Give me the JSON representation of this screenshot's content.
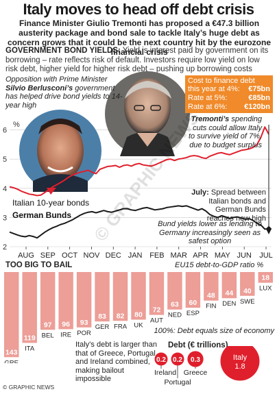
{
  "title": "Italy moves to head off debt crisis",
  "subtitle": "Finance Minister Giulio Tremonti has proposed a €47.3 billion austerity package and bond sale to tackle Italy’s huge debt as concern grows that it could be the next country hit by the eurozone financial crisis",
  "bond_section": {
    "heading": "GOVERNMENT BOND YIELDS:",
    "text": "Yield is interest paid by government on its borrowing – rate reflects risk of default. Investors require low yield on low risk debt, higher yield for higher risk debt – pushing up borrowing costs"
  },
  "annotations": {
    "berlusconi_prefix": "Opposition with Prime Minister",
    "berlusconi_name": "Silvio Berlusconi’s",
    "berlusconi_suffix": "government has helped drive bond yields to 14-year high",
    "tremonti_name": "Tremonti’s",
    "tremonti_text": "spending cuts could allow Italy to survive yield of 7%, due to budget surplus",
    "july_label": "July:",
    "july_text": "Spread between Italian bonds and German Bunds reaches new high",
    "bund_text": "Bund yields lower as lending to Germany increasingly seen as safest option"
  },
  "cost_box": {
    "heading": "Cost to finance debt",
    "rows": [
      {
        "label": "this year at 4%:",
        "value": "€75bn"
      },
      {
        "label": "Rate at 5%:",
        "value": "€85bn"
      },
      {
        "label": "Rate at 6%:",
        "value": "€120bn"
      }
    ]
  },
  "colors": {
    "italy_line": "#e01f2c",
    "bund_line": "#1a1a1a",
    "bars": "#ec9e97",
    "bar_labels": "#ffffff",
    "orange_box": "#f08a2a",
    "italy_circle": "#e01f2c"
  },
  "chart_data": [
    {
      "type": "line",
      "y_unit_label": "%",
      "ylim": [
        2,
        6.6
      ],
      "yticks": [
        2,
        3,
        4,
        5,
        6
      ],
      "x_tick_labels": [
        "AUG",
        "SEP",
        "OCT",
        "NOV",
        "DEC",
        "JAN",
        "FEB",
        "MAR",
        "APR",
        "MAY",
        "JUN",
        "JUL"
      ],
      "series": [
        {
          "name": "Italian 10-year bonds",
          "values": [
            4.05,
            4.02,
            3.97,
            3.9,
            3.85,
            3.8,
            3.78,
            3.75,
            3.77,
            3.86,
            3.95,
            4.05,
            4.12,
            4.2,
            4.28,
            4.38,
            4.45,
            4.5,
            4.55,
            4.58,
            4.62,
            4.55,
            4.5,
            4.65,
            4.7,
            4.75,
            4.76,
            4.78,
            4.72,
            4.78,
            4.8,
            4.76,
            4.82,
            4.85,
            4.8,
            4.78,
            4.76,
            4.8,
            4.86,
            4.92,
            4.98,
            5.0,
            4.95,
            5.0,
            5.02,
            5.05,
            5.1,
            5.12,
            5.1,
            5.05,
            5.02,
            5.1,
            5.15,
            5.2,
            5.22,
            5.18,
            5.15,
            5.2,
            5.25,
            5.3,
            5.32,
            5.35,
            5.4,
            5.5,
            5.75,
            6.1,
            5.85
          ]
        },
        {
          "name": "German Bunds",
          "values": [
            2.5,
            2.45,
            2.4,
            2.36,
            2.34,
            2.38,
            2.35,
            2.3,
            2.4,
            2.5,
            2.58,
            2.65,
            2.7,
            2.76,
            2.8,
            2.86,
            2.92,
            3.0,
            3.08,
            3.14,
            3.18,
            3.2,
            3.16,
            3.2,
            3.24,
            3.2,
            3.18,
            3.22,
            3.26,
            3.3,
            3.3,
            3.26,
            3.24,
            3.28,
            3.32,
            3.34,
            3.3,
            3.26,
            3.28,
            3.3,
            3.34,
            3.36,
            3.38,
            3.4,
            3.38,
            3.4,
            3.35,
            3.3,
            3.25,
            3.3,
            3.22,
            3.1,
            3.04,
            3.0,
            3.06,
            3.02,
            2.96,
            3.0,
            3.02,
            2.98,
            2.94,
            2.96,
            2.9,
            2.8,
            2.74,
            2.6,
            2.62
          ]
        }
      ]
    },
    {
      "type": "bar",
      "title": "TOO BIG TO BAIL",
      "note": "EU15 debt-to-GDP ratio %",
      "categories": [
        "GRE",
        "ITA",
        "BEL",
        "IRE",
        "POR",
        "GER",
        "FRA",
        "UK",
        "AUT",
        "NED",
        "ESP",
        "FIN",
        "DEN",
        "SWE",
        "LUX"
      ],
      "values": [
        143,
        119,
        97,
        96,
        93,
        83,
        82,
        80,
        72,
        63,
        60,
        48,
        44,
        40,
        18
      ],
      "ylim": [
        0,
        145
      ]
    },
    {
      "type": "bubble",
      "title": "Debt (€ trillions)",
      "categories": [
        "Ireland",
        "Portugal",
        "Greece",
        "Italy"
      ],
      "values": [
        0.2,
        0.2,
        0.3,
        1.8
      ]
    }
  ],
  "circle_note": "100%: Debt equals size of economy",
  "italy_debt_note": "Italy’s debt is larger than that of Greece, Portugal and Ireland combined, making bailout impossible",
  "watermark": "© GRAPHIC NEWS",
  "footer": "© GRAPHIC NEWS"
}
